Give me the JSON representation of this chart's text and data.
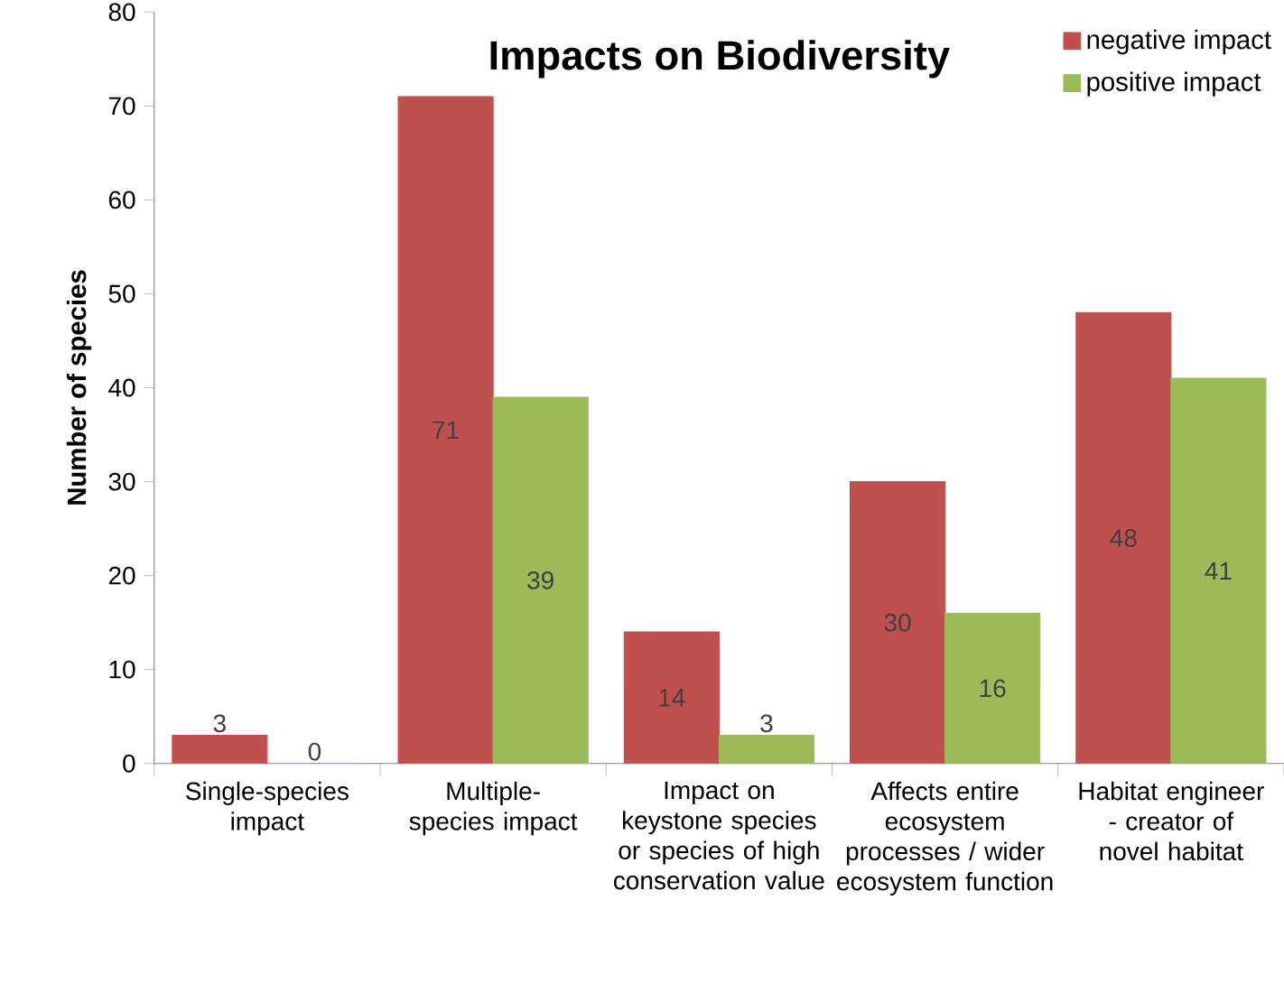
{
  "chart_data": {
    "type": "bar",
    "title": "Impacts on Biodiversity",
    "ylabel": "Number of species",
    "categories": [
      "Single-species impact",
      "Multiple-species impact",
      "Impact on keystone species or species of high conservation value",
      "Affects entire ecosystem processes / wider ecosystem function",
      "Habitat engineer - creator of novel habitat"
    ],
    "series": [
      {
        "name": "negative impact",
        "color": "#c0504d",
        "values": [
          3,
          71,
          14,
          30,
          48
        ]
      },
      {
        "name": "positive impact",
        "color": "#9bbb59",
        "values": [
          0,
          39,
          3,
          16,
          41
        ]
      }
    ],
    "ylim": [
      0,
      80
    ],
    "yticks": [
      0,
      10,
      20,
      30,
      40,
      50,
      60,
      70,
      80
    ],
    "data_labels": true,
    "legend": "top right",
    "grid": false
  }
}
